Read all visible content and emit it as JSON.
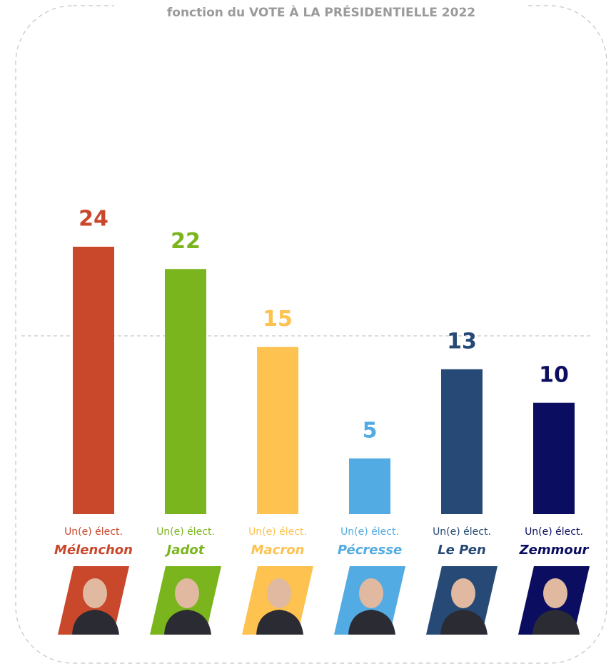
{
  "chart_data": {
    "type": "bar",
    "title": "fonction du VOTE À LA PRÉSIDENTIELLE 2022",
    "categories": [
      "Mélenchon",
      "Jadot",
      "Macron",
      "Pécresse",
      "Le Pen",
      "Zemmour"
    ],
    "sublabels": [
      "Un(e) élect.",
      "Un(e) élect.",
      "Un(e) élect.",
      "Un(e) élect.",
      "Un(e) élect.",
      "Un(e) élect."
    ],
    "values": [
      24,
      22,
      15,
      5,
      13,
      10
    ],
    "colors": [
      "#c9472b",
      "#7ab51d",
      "#fdc24f",
      "#52abe3",
      "#264a75",
      "#0b0e60"
    ],
    "ylim": [
      0,
      24
    ],
    "reference_line": 16
  }
}
